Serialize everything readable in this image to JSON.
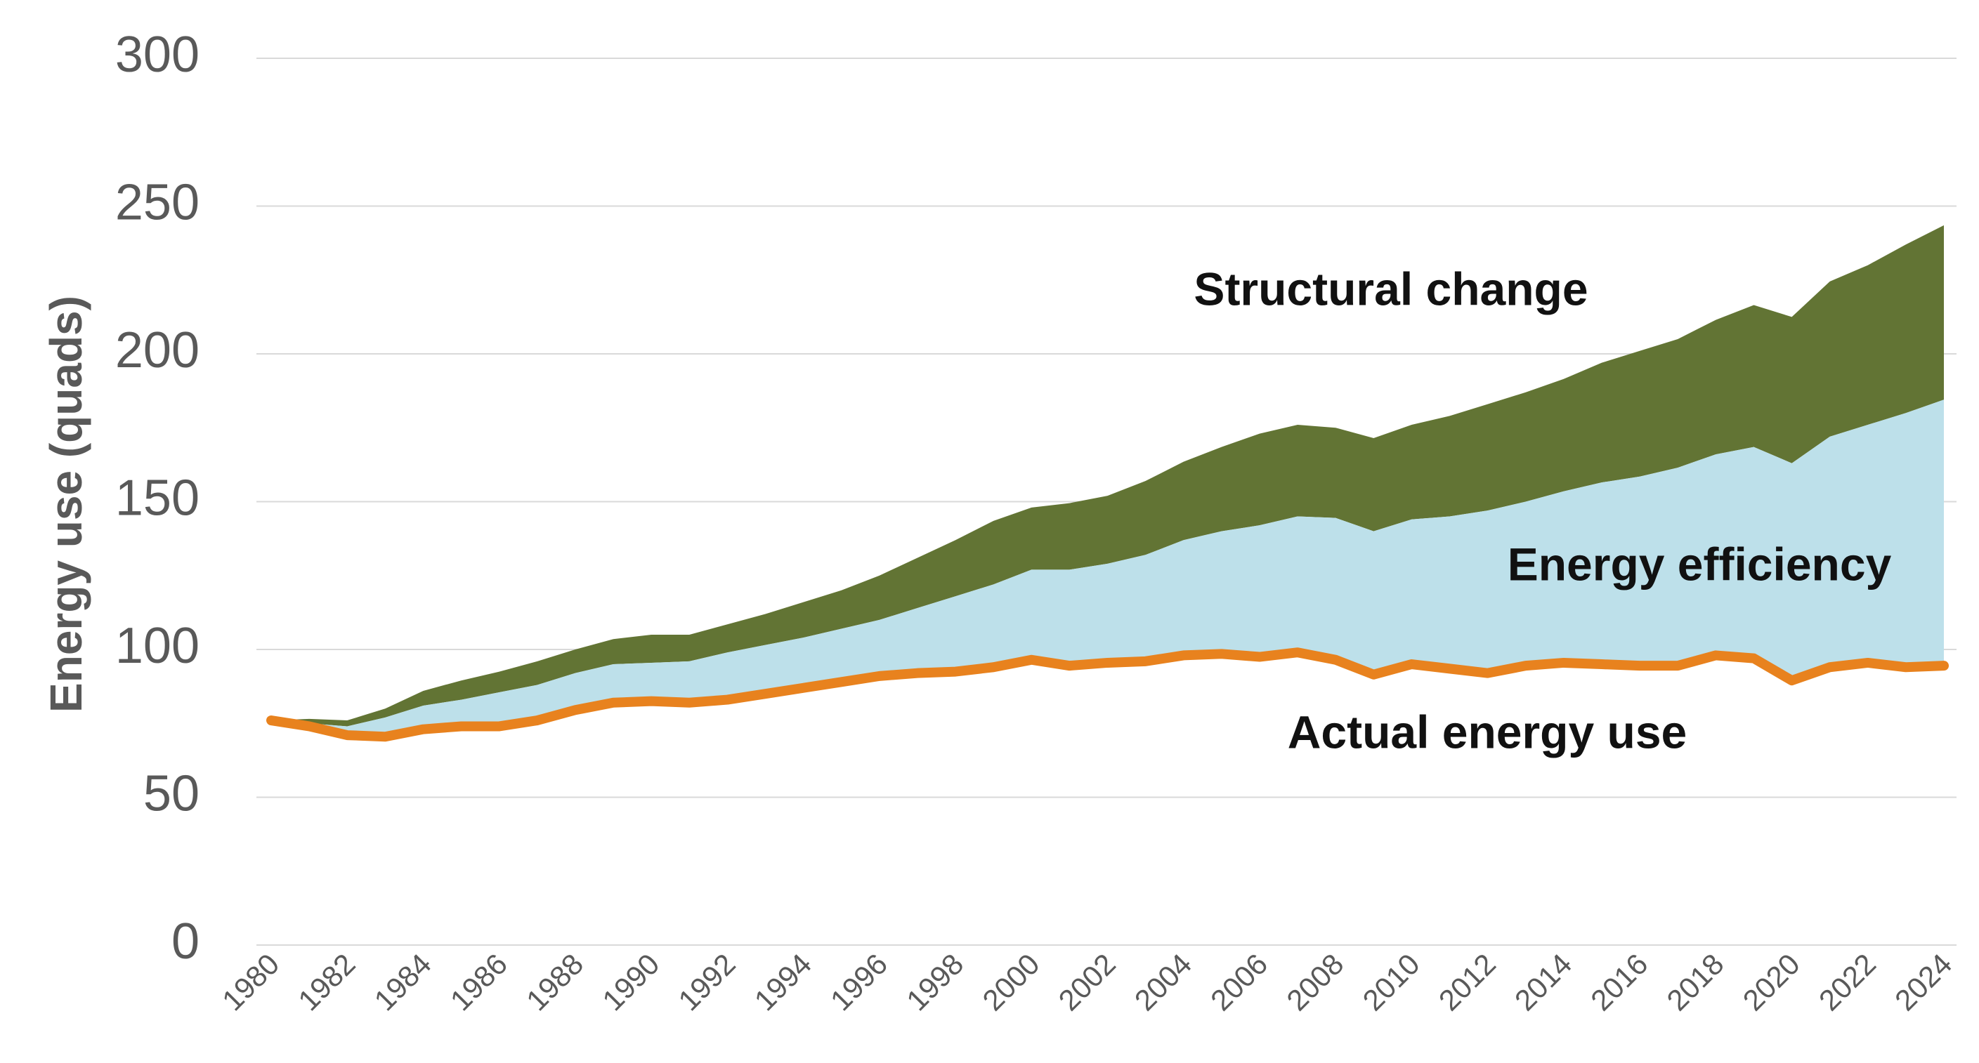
{
  "chart_data": {
    "type": "stacked_area",
    "y_label": "Energy use (quads)",
    "x": [
      1980,
      1981,
      1982,
      1983,
      1984,
      1985,
      1986,
      1987,
      1988,
      1989,
      1990,
      1991,
      1992,
      1993,
      1994,
      1995,
      1996,
      1997,
      1998,
      1999,
      2000,
      2001,
      2002,
      2003,
      2004,
      2005,
      2006,
      2007,
      2008,
      2009,
      2010,
      2011,
      2012,
      2013,
      2014,
      2015,
      2016,
      2017,
      2018,
      2019,
      2020,
      2021,
      2022,
      2023,
      2024
    ],
    "xlim": [
      1980,
      2024
    ],
    "xticks": [
      1980,
      1982,
      1984,
      1986,
      1988,
      1990,
      1992,
      1994,
      1996,
      1998,
      2000,
      2002,
      2004,
      2006,
      2008,
      2010,
      2012,
      2014,
      2016,
      2018,
      2020,
      2022,
      2024
    ],
    "ylim": [
      0,
      300
    ],
    "yticks": [
      0,
      50,
      100,
      150,
      200,
      250,
      300
    ],
    "grid": true,
    "series": [
      {
        "name": "Actual energy use",
        "type": "line",
        "color": "#e8821e",
        "values": [
          76,
          74,
          71,
          70.5,
          73,
          74,
          74,
          76,
          79.5,
          82,
          82.5,
          82,
          83,
          85,
          87,
          89,
          91,
          92,
          92.5,
          94,
          96.5,
          94.5,
          95.5,
          96,
          98,
          98.5,
          97.5,
          99,
          96.5,
          91.5,
          95,
          93.5,
          92,
          94.5,
          95.5,
          95,
          94.5,
          94.5,
          98,
          97,
          89.5,
          94,
          95.5,
          94,
          94.5
        ]
      },
      {
        "name": "Energy efficiency",
        "type": "area",
        "color": "#bde0ea",
        "values": [
          0,
          1,
          3,
          6.5,
          8,
          9,
          11.5,
          12,
          12.5,
          13,
          13,
          14,
          16,
          16.5,
          17,
          18,
          19,
          22,
          25.5,
          28,
          30.5,
          32.5,
          33.5,
          36,
          39,
          41.5,
          44.5,
          46,
          48,
          48.5,
          49,
          51.5,
          55,
          55.5,
          58,
          61.5,
          64,
          67,
          68,
          71.5,
          73.5,
          78,
          80.5,
          86,
          90
        ]
      },
      {
        "name": "Structural change",
        "type": "area",
        "color": "#627434",
        "values": [
          0,
          1.5,
          2,
          3,
          5,
          6.5,
          7,
          8,
          8,
          8.5,
          9.5,
          9,
          9.5,
          10.5,
          12,
          13,
          15,
          17,
          19,
          21.5,
          21,
          22.5,
          23,
          25,
          26.5,
          28.5,
          31,
          31,
          30.5,
          31.5,
          32,
          34,
          36,
          37,
          38,
          40.5,
          42.5,
          43.5,
          45.5,
          48,
          49.5,
          52.5,
          54,
          57,
          59
        ]
      }
    ]
  }
}
